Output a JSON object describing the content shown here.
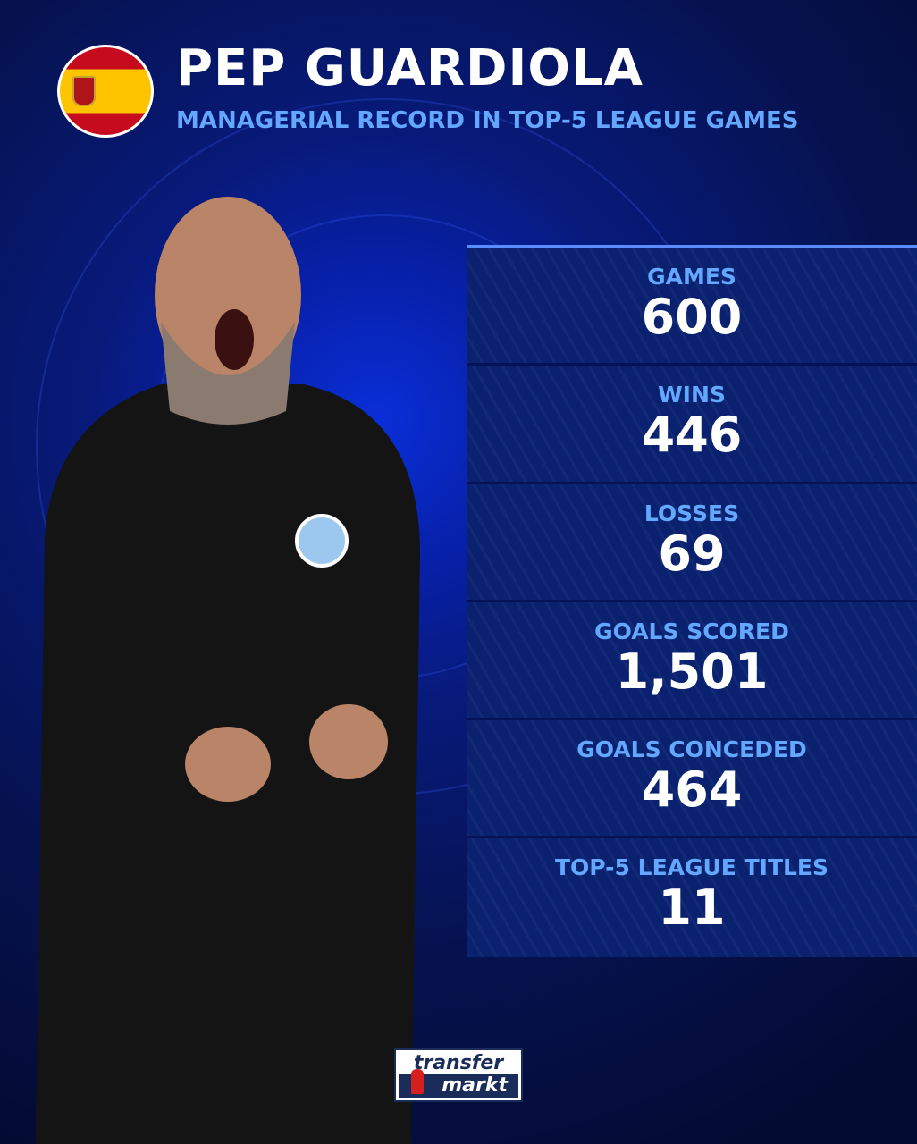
{
  "header": {
    "title": "PEP GUARDIOLA",
    "subtitle": "MANAGERIAL RECORD IN TOP-5 LEAGUE GAMES",
    "flag": "spain-flag"
  },
  "stats": [
    {
      "label": "GAMES",
      "value": "600"
    },
    {
      "label": "WINS",
      "value": "446"
    },
    {
      "label": "LOSSES",
      "value": "69"
    },
    {
      "label": "GOALS SCORED",
      "value": "1,501"
    },
    {
      "label": "GOALS CONCEDED",
      "value": "464"
    },
    {
      "label": "TOP-5 LEAGUE TITLES",
      "value": "11"
    }
  ],
  "logo": {
    "line1": "transfer",
    "line2": "markt"
  },
  "colors": {
    "accent": "#63a7ff",
    "panel": "#0a2170",
    "background": "#06124f"
  }
}
